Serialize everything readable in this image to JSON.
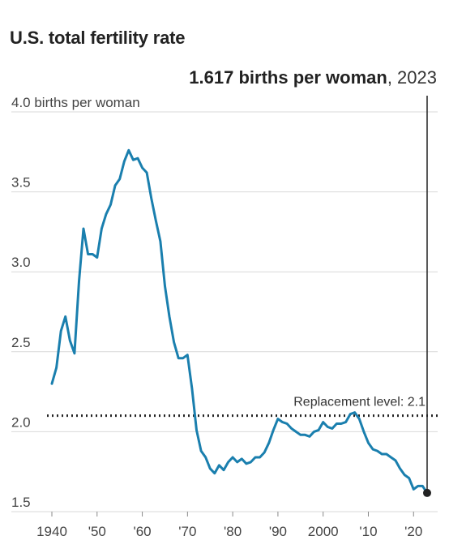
{
  "chart_data": {
    "type": "line",
    "title": "U.S. total fertility rate",
    "callout": {
      "value_text": "1.617 births per woman",
      "year_text": ", 2023"
    },
    "y_first_tick_label": "4.0 births per woman",
    "y_tick_labels": [
      "1.5",
      "2.0",
      "2.5",
      "3.0",
      "3.5"
    ],
    "x_tick_labels": [
      "1940",
      "'50",
      "'60",
      "'70",
      "'80",
      "'90",
      "2000",
      "'10",
      "'20"
    ],
    "ylim": [
      1.5,
      4.0
    ],
    "xlim": [
      1940,
      2023
    ],
    "grid": true,
    "reference_line": {
      "label": "Replacement level: 2.1",
      "value": 2.1
    },
    "highlight_point": {
      "x": 2023,
      "y": 1.617
    },
    "series": [
      {
        "color": "#1a7fae",
        "x": [
          1940,
          1941,
          1942,
          1943,
          1944,
          1945,
          1946,
          1947,
          1948,
          1949,
          1950,
          1951,
          1952,
          1953,
          1954,
          1955,
          1956,
          1957,
          1958,
          1959,
          1960,
          1961,
          1962,
          1963,
          1964,
          1965,
          1966,
          1967,
          1968,
          1969,
          1970,
          1971,
          1972,
          1973,
          1974,
          1975,
          1976,
          1977,
          1978,
          1979,
          1980,
          1981,
          1982,
          1983,
          1984,
          1985,
          1986,
          1987,
          1988,
          1989,
          1990,
          1991,
          1992,
          1993,
          1994,
          1995,
          1996,
          1997,
          1998,
          1999,
          2000,
          2001,
          2002,
          2003,
          2004,
          2005,
          2006,
          2007,
          2008,
          2009,
          2010,
          2011,
          2012,
          2013,
          2014,
          2015,
          2016,
          2017,
          2018,
          2019,
          2020,
          2021,
          2022,
          2023
        ],
        "y": [
          2.3,
          2.4,
          2.63,
          2.72,
          2.57,
          2.49,
          2.94,
          3.27,
          3.11,
          3.11,
          3.09,
          3.27,
          3.36,
          3.42,
          3.54,
          3.58,
          3.69,
          3.76,
          3.7,
          3.71,
          3.65,
          3.62,
          3.46,
          3.32,
          3.19,
          2.91,
          2.72,
          2.56,
          2.46,
          2.46,
          2.48,
          2.27,
          2.01,
          1.88,
          1.84,
          1.77,
          1.74,
          1.79,
          1.76,
          1.81,
          1.84,
          1.81,
          1.83,
          1.8,
          1.81,
          1.84,
          1.84,
          1.87,
          1.93,
          2.01,
          2.08,
          2.06,
          2.05,
          2.02,
          2.0,
          1.98,
          1.98,
          1.97,
          2.0,
          2.01,
          2.06,
          2.03,
          2.02,
          2.05,
          2.05,
          2.06,
          2.11,
          2.12,
          2.08,
          2.0,
          1.93,
          1.89,
          1.88,
          1.86,
          1.86,
          1.84,
          1.82,
          1.77,
          1.73,
          1.71,
          1.64,
          1.66,
          1.66,
          1.617
        ]
      }
    ]
  }
}
